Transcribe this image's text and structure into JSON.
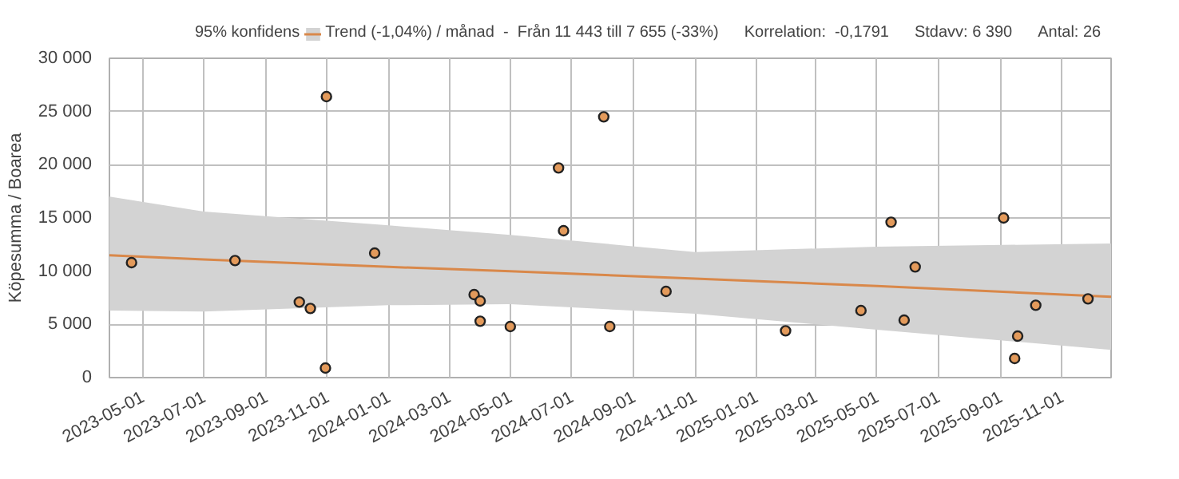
{
  "chart_data": {
    "type": "scatter",
    "ylabel": "Köpesumma / Boarea",
    "xlim": [
      "2023-03-29",
      "2025-12-20"
    ],
    "xticks": [
      "2023-05-01",
      "2023-07-01",
      "2023-09-01",
      "2023-11-01",
      "2024-01-01",
      "2024-03-01",
      "2024-05-01",
      "2024-07-01",
      "2024-09-01",
      "2024-11-01",
      "2025-01-01",
      "2025-03-01",
      "2025-05-01",
      "2025-07-01",
      "2025-09-01",
      "2025-11-01"
    ],
    "ylim": [
      0,
      30000
    ],
    "yticks": [
      {
        "value": 0,
        "label": "0"
      },
      {
        "value": 5000,
        "label": "5 000"
      },
      {
        "value": 10000,
        "label": "10 000"
      },
      {
        "value": 15000,
        "label": "15 000"
      },
      {
        "value": 20000,
        "label": "20 000"
      },
      {
        "value": 25000,
        "label": "25 000"
      },
      {
        "value": 30000,
        "label": "30 000"
      }
    ],
    "grid": true,
    "legend": "top",
    "series": [
      {
        "type": "line",
        "name": "Trend (-1,04%) / månad  -  Från 11 443 till 7 655 (-33%)",
        "color": "#d9884a",
        "line_style": "solid",
        "x": [
          "2023-03-29",
          "2023-07-01",
          "2024-01-01",
          "2024-05-01",
          "2024-11-01",
          "2025-05-01",
          "2025-12-20"
        ],
        "values": [
          11500,
          11100,
          10400,
          10000,
          9300,
          8600,
          7600
        ],
        "lower": [
          6300,
          6200,
          6800,
          6900,
          6000,
          4500,
          2600
        ],
        "upper": [
          17000,
          15600,
          14300,
          13400,
          11800,
          12300,
          12600
        ]
      },
      {
        "color": "#e39a5b",
        "marker": "circle",
        "x": [
          "2023-04-20",
          "2023-08-01",
          "2023-10-04",
          "2023-10-15",
          "2023-10-30",
          "2023-10-31",
          "2023-12-18",
          "2024-03-26",
          "2024-04-01",
          "2024-04-01",
          "2024-05-01",
          "2024-06-18",
          "2024-06-23",
          "2024-08-02",
          "2024-08-08",
          "2024-10-03",
          "2025-01-30",
          "2025-04-15",
          "2025-05-15",
          "2025-05-28",
          "2025-06-08",
          "2025-09-04",
          "2025-09-15",
          "2025-09-18",
          "2025-10-06",
          "2025-11-27"
        ],
        "values": [
          10800,
          11000,
          7100,
          6500,
          900,
          26400,
          11700,
          7800,
          7200,
          5300,
          4800,
          19700,
          13800,
          24500,
          4800,
          8100,
          4400,
          6300,
          14600,
          5400,
          10400,
          15000,
          1800,
          3900,
          6800,
          7400
        ]
      }
    ],
    "annotations": [
      "95% konfidens",
      "Korrelation:  -0,1791",
      "Stdavv: 6 390",
      "Antal: 26"
    ]
  }
}
